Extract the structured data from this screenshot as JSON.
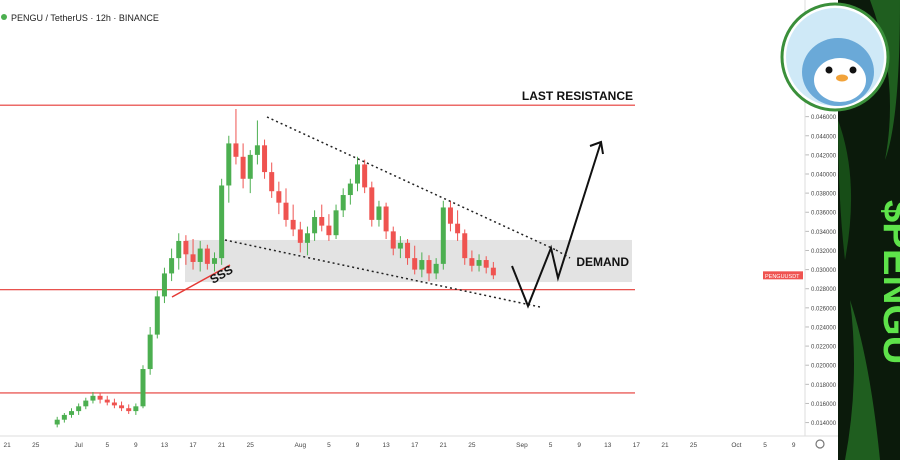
{
  "chart_data": {
    "type": "candlestick",
    "title": "PENGU / TetherUS · 12h · BINANCE",
    "brand": "$PENGU",
    "symbol_label": "PENGUUSDT",
    "up_color": "#4caf50",
    "down_color": "#ef5350",
    "level_color": "#e53935",
    "categories": [
      null,
      "21",
      null,
      null,
      null,
      "25",
      null,
      null,
      null,
      null,
      null,
      "Jul",
      null,
      null,
      null,
      "5",
      null,
      null,
      null,
      "9",
      null,
      null,
      null,
      "13",
      null,
      null,
      null,
      "17",
      null,
      null,
      null,
      "21",
      null,
      null,
      null,
      "25",
      null,
      null,
      null,
      null,
      null,
      null,
      "Aug",
      null,
      null,
      null,
      "5",
      null,
      null,
      null,
      "9",
      null,
      null,
      null,
      "13",
      null,
      null,
      null,
      "17",
      null,
      null,
      null,
      "21",
      null,
      null,
      null,
      "25",
      null,
      null,
      null,
      null,
      null,
      null,
      "Sep",
      null,
      null,
      null,
      "5",
      null,
      null,
      null,
      "9",
      null,
      null,
      null,
      "13",
      null,
      null,
      null,
      "17",
      null,
      null,
      null,
      "21",
      null,
      null,
      null,
      "25",
      null,
      null,
      null,
      null,
      null,
      "Oct",
      null,
      null,
      null,
      "5",
      null,
      null,
      null,
      "9"
    ],
    "open": [
      null,
      null,
      null,
      null,
      null,
      null,
      null,
      null,
      0.0138,
      0.0143,
      0.0148,
      0.0152,
      0.0157,
      0.0163,
      0.0168,
      0.0164,
      0.0161,
      0.0158,
      0.0155,
      0.0152,
      0.0157,
      0.0196,
      0.0232,
      0.0272,
      0.0296,
      0.0312,
      0.033,
      0.0316,
      0.0308,
      0.0322,
      0.0306,
      0.0312,
      0.0388,
      0.0432,
      0.0418,
      0.0395,
      0.042,
      0.043,
      0.0402,
      0.0382,
      0.037,
      0.0352,
      0.0342,
      0.0328,
      0.0338,
      0.0355,
      0.0346,
      0.0336,
      0.0362,
      0.0378,
      0.039,
      0.041,
      0.0386,
      0.0352,
      0.0366,
      0.034,
      0.0322,
      0.0328,
      0.0312,
      0.03,
      0.031,
      0.0296,
      0.0306,
      0.0365,
      0.0348,
      0.0338,
      0.0312,
      0.0304,
      0.031,
      0.0302,
      null,
      null,
      null,
      null,
      null,
      null,
      null,
      null,
      null,
      null,
      null,
      null,
      null,
      null,
      null,
      null,
      null,
      null,
      null,
      null,
      null,
      null,
      null,
      null,
      null,
      null,
      null,
      null,
      null,
      null,
      null,
      null,
      null,
      null,
      null,
      null,
      null,
      null,
      null,
      null,
      null,
      null
    ],
    "high": [
      null,
      null,
      null,
      null,
      null,
      null,
      null,
      null,
      0.0146,
      0.015,
      0.0155,
      0.016,
      0.0166,
      0.0172,
      0.0171,
      0.0168,
      0.0165,
      0.0162,
      0.0159,
      0.016,
      0.02,
      0.024,
      0.0278,
      0.0302,
      0.0322,
      0.0338,
      0.0336,
      0.0332,
      0.033,
      0.0326,
      0.0318,
      0.0395,
      0.044,
      0.0468,
      0.0432,
      0.0425,
      0.0456,
      0.0436,
      0.0412,
      0.0392,
      0.0385,
      0.0368,
      0.035,
      0.0345,
      0.0362,
      0.0368,
      0.0358,
      0.0368,
      0.0385,
      0.0395,
      0.0418,
      0.0415,
      0.0392,
      0.0372,
      0.037,
      0.0345,
      0.0335,
      0.0332,
      0.0325,
      0.0318,
      0.0315,
      0.0312,
      0.0372,
      0.0372,
      0.0362,
      0.0342,
      0.032,
      0.0316,
      0.0314,
      0.0308,
      null,
      null,
      null,
      null,
      null,
      null,
      null,
      null,
      null,
      null,
      null,
      null,
      null,
      null,
      null,
      null,
      null,
      null,
      null,
      null,
      null,
      null,
      null,
      null,
      null,
      null,
      null,
      null,
      null,
      null,
      null,
      null,
      null,
      null,
      null,
      null,
      null,
      null,
      null,
      null,
      null,
      null
    ],
    "low": [
      null,
      null,
      null,
      null,
      null,
      null,
      null,
      null,
      0.0135,
      0.014,
      0.0145,
      0.0148,
      0.0154,
      0.016,
      0.016,
      0.0158,
      0.0155,
      0.0152,
      0.0149,
      0.0148,
      0.0155,
      0.019,
      0.0228,
      0.0265,
      0.0288,
      0.03,
      0.0305,
      0.03,
      0.0298,
      0.03,
      0.0298,
      0.0305,
      0.037,
      0.041,
      0.0385,
      0.038,
      0.041,
      0.0395,
      0.0375,
      0.0358,
      0.0345,
      0.0335,
      0.0318,
      0.0315,
      0.033,
      0.034,
      0.033,
      0.0332,
      0.0355,
      0.0368,
      0.0382,
      0.038,
      0.0345,
      0.0345,
      0.0332,
      0.0315,
      0.0312,
      0.0305,
      0.0295,
      0.0292,
      0.0288,
      0.029,
      0.03,
      0.034,
      0.033,
      0.0305,
      0.0298,
      0.0298,
      0.0296,
      0.029,
      null,
      null,
      null,
      null,
      null,
      null,
      null,
      null,
      null,
      null,
      null,
      null,
      null,
      null,
      null,
      null,
      null,
      null,
      null,
      null,
      null,
      null,
      null,
      null,
      null,
      null,
      null,
      null,
      null,
      null,
      null,
      null,
      null,
      null,
      null,
      null,
      null,
      null,
      null,
      null,
      null,
      null
    ],
    "close": [
      null,
      null,
      null,
      null,
      null,
      null,
      null,
      null,
      0.0143,
      0.0148,
      0.0152,
      0.0157,
      0.0163,
      0.0168,
      0.0164,
      0.0161,
      0.0158,
      0.0155,
      0.0152,
      0.0157,
      0.0196,
      0.0232,
      0.0272,
      0.0296,
      0.0312,
      0.033,
      0.0316,
      0.0308,
      0.0322,
      0.0306,
      0.0312,
      0.0388,
      0.0432,
      0.0418,
      0.0395,
      0.042,
      0.043,
      0.0402,
      0.0382,
      0.037,
      0.0352,
      0.0342,
      0.0328,
      0.0338,
      0.0355,
      0.0346,
      0.0336,
      0.0362,
      0.0378,
      0.039,
      0.041,
      0.0386,
      0.0352,
      0.0366,
      0.034,
      0.0322,
      0.0328,
      0.0312,
      0.03,
      0.031,
      0.0296,
      0.0306,
      0.0365,
      0.0348,
      0.0338,
      0.0312,
      0.0304,
      0.031,
      0.0302,
      0.0294,
      null,
      null,
      null,
      null,
      null,
      null,
      null,
      null,
      null,
      null,
      null,
      null,
      null,
      null,
      null,
      null,
      null,
      null,
      null,
      null,
      null,
      null,
      null,
      null,
      null,
      null,
      null,
      null,
      null,
      null,
      null,
      null,
      null,
      null,
      null,
      null,
      null,
      null,
      null,
      null,
      null,
      null
    ],
    "ylim": [
      0.0127,
      0.0582
    ],
    "yticks": [
      {
        "value": 0.014,
        "label": "0.014000"
      },
      {
        "value": 0.016,
        "label": "0.016000"
      },
      {
        "value": 0.018,
        "label": "0.018000"
      },
      {
        "value": 0.02,
        "label": "0.020000"
      },
      {
        "value": 0.022,
        "label": "0.022000"
      },
      {
        "value": 0.024,
        "label": "0.024000"
      },
      {
        "value": 0.026,
        "label": "0.026000"
      },
      {
        "value": 0.028,
        "label": "0.028000"
      },
      {
        "value": 0.03,
        "label": "0.030000"
      },
      {
        "value": 0.032,
        "label": "0.032000"
      },
      {
        "value": 0.034,
        "label": "0.034000"
      },
      {
        "value": 0.036,
        "label": "0.036000"
      },
      {
        "value": 0.038,
        "label": "0.038000"
      },
      {
        "value": 0.04,
        "label": "0.040000"
      },
      {
        "value": 0.042,
        "label": "0.042000"
      },
      {
        "value": 0.044,
        "label": "0.044000"
      },
      {
        "value": 0.046,
        "label": "0.046000"
      }
    ],
    "levels": [
      {
        "label": "LAST RESISTANCE",
        "value": 0.0472
      },
      {
        "label": null,
        "value": 0.0279
      },
      {
        "label": null,
        "value": 0.0171
      }
    ],
    "demand_zone": {
      "label": "DEMAND",
      "range": [
        0.0287,
        0.0331
      ]
    },
    "annotation": "SSS"
  }
}
